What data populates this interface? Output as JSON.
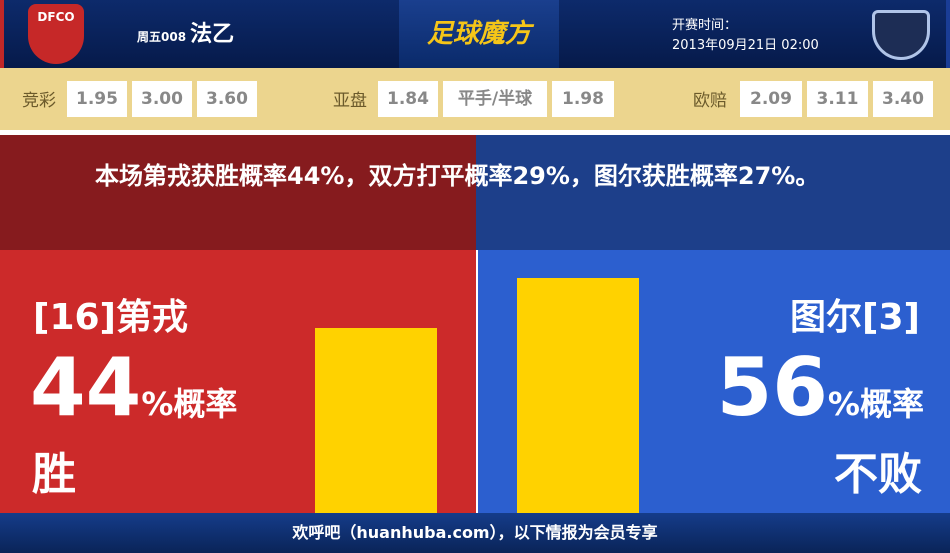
{
  "header": {
    "home_logo_text": "DFCO",
    "match_no": "周五008",
    "league": "法乙",
    "brand": "足球魔方",
    "kickoff_label": "开赛时间：",
    "kickoff_time": "2013年09月21日 02:00"
  },
  "odds": {
    "jingcai": {
      "label": "竞彩",
      "values": [
        "1.95",
        "3.00",
        "3.60"
      ]
    },
    "yapan": {
      "label": "亚盘",
      "values": [
        "1.84",
        "平手/半球",
        "1.98"
      ]
    },
    "oupei": {
      "label": "欧赔",
      "values": [
        "2.09",
        "3.11",
        "3.40"
      ]
    }
  },
  "summary": "本场第戎获胜概率44%，双方打平概率29%，图尔获胜概率27%。",
  "home": {
    "team": "[16]第戎",
    "percent": "44",
    "suffix": "%概率",
    "result": "胜",
    "bar_value": 44,
    "color": "#cc2a2a"
  },
  "away": {
    "team": "图尔[3]",
    "percent": "56",
    "suffix": "%概率",
    "result": "不败",
    "bar_value": 56,
    "color": "#2c5fcf"
  },
  "bar_color": "#ffd200",
  "footer": "欢呼吧（huanhuba.com），以下情报为会员专享"
}
